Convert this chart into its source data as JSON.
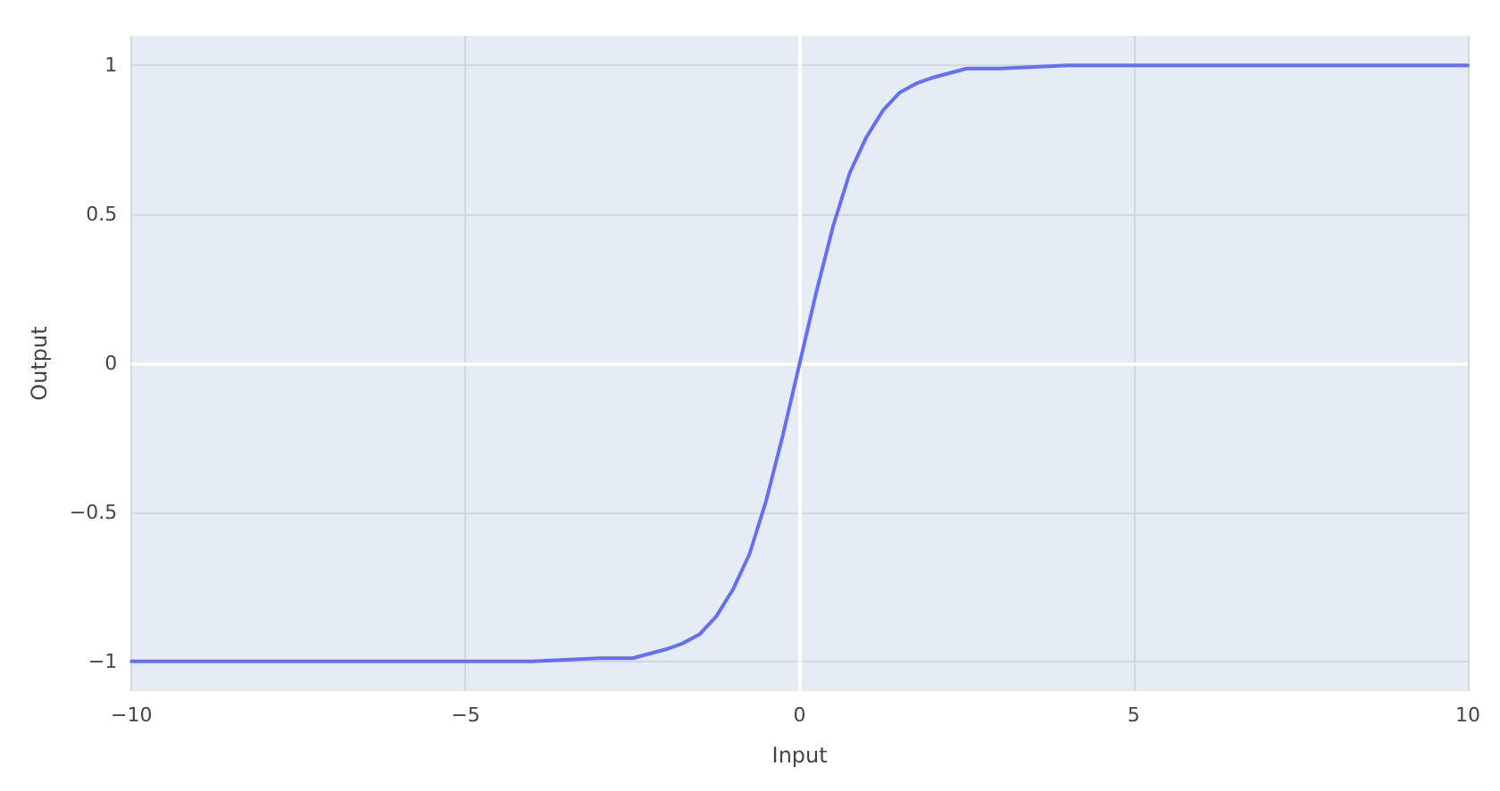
{
  "chart_data": {
    "type": "line",
    "xlabel": "Input",
    "ylabel": "Output",
    "series": [
      {
        "color": "#636efa",
        "x": [
          -10,
          -8,
          -6,
          -4,
          -3,
          -2.5,
          -2,
          -1.75,
          -1.5,
          -1.25,
          -1,
          -0.75,
          -0.5,
          -0.25,
          0,
          0.25,
          0.5,
          0.75,
          1,
          1.25,
          1.5,
          1.75,
          2,
          2.5,
          3,
          4,
          6,
          8,
          10
        ],
        "values": [
          -1,
          -1,
          -1,
          -1,
          -0.99,
          -0.99,
          -0.96,
          -0.94,
          -0.91,
          -0.85,
          -0.76,
          -0.64,
          -0.46,
          -0.24,
          0,
          0.24,
          0.46,
          0.64,
          0.76,
          0.85,
          0.91,
          0.94,
          0.96,
          0.99,
          0.99,
          1,
          1,
          1,
          1
        ]
      }
    ],
    "xlim": [
      -10,
      10
    ],
    "ylim": [
      -1.1,
      1.1
    ],
    "xticks": [
      {
        "value": -10,
        "label": "−10"
      },
      {
        "value": -5,
        "label": "−5"
      },
      0,
      5,
      10
    ],
    "yticks": [
      {
        "value": -1,
        "label": "−1"
      },
      {
        "value": -0.5,
        "label": "−0.5"
      },
      0,
      0.5,
      1
    ],
    "grid": true,
    "marker": "none",
    "line_style": "solid"
  }
}
